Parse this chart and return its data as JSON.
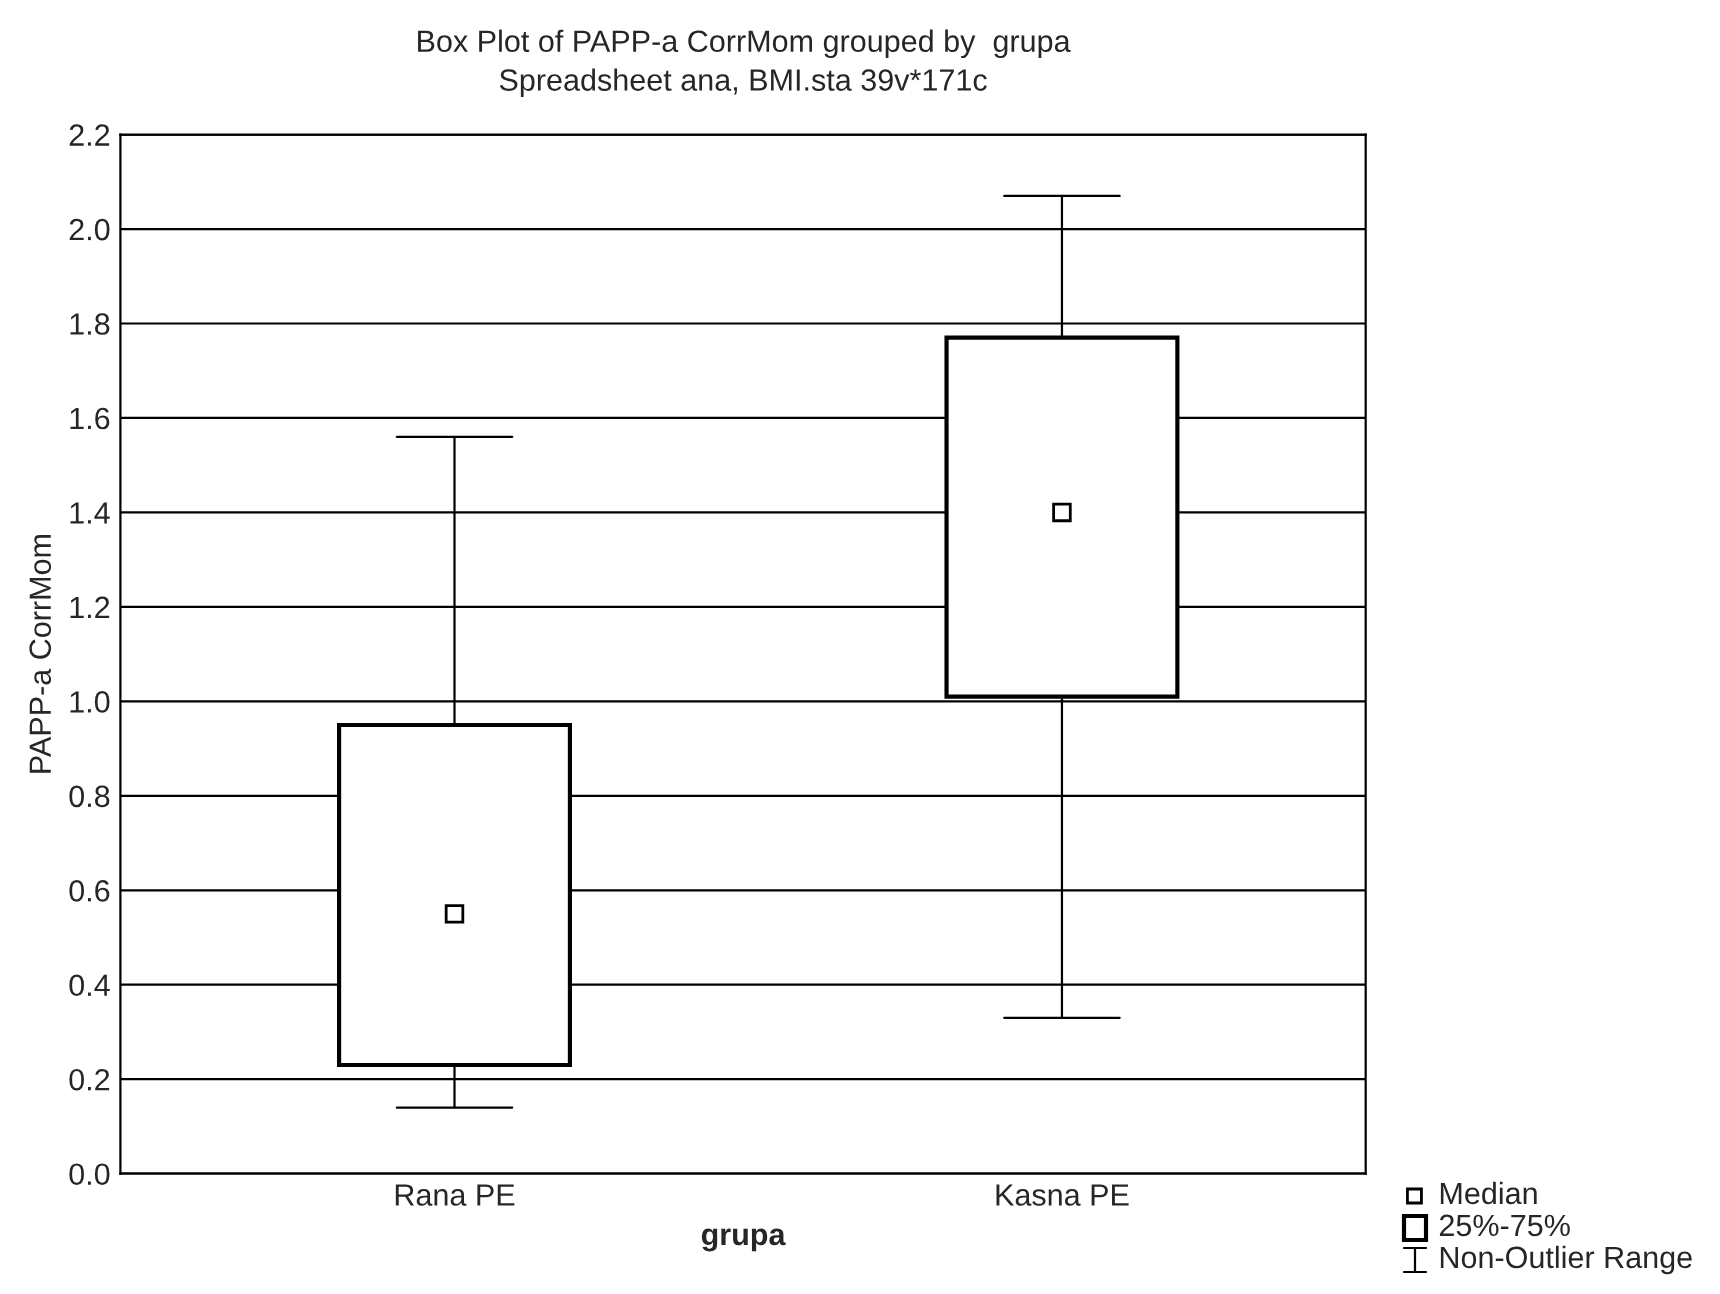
{
  "chart_data": {
    "type": "box",
    "title": "Box Plot of PAPP-a CorrMom grouped by  grupa",
    "subtitle": "Spreadsheet ana, BMI.sta 39v*171c",
    "xlabel": "grupa",
    "ylabel": "PAPP-a CorrMom",
    "categories": [
      "Rana PE",
      "Kasna PE"
    ],
    "boxes": [
      {
        "low": 0.14,
        "q1": 0.23,
        "median": 0.55,
        "q3": 0.95,
        "high": 1.56
      },
      {
        "low": 0.33,
        "q1": 1.01,
        "median": 1.4,
        "q3": 1.77,
        "high": 2.07
      }
    ],
    "ylim": [
      0.0,
      2.2
    ],
    "yticks": [
      {
        "value": 0,
        "label": "0.0"
      },
      0.2,
      0.4,
      0.6,
      0.8,
      {
        "value": 1,
        "label": "1.0"
      },
      1.2,
      1.4,
      1.6,
      1.8,
      {
        "value": 2,
        "label": "2.0"
      },
      2.2
    ],
    "grid": "y",
    "marker": "square",
    "annotations": [
      "Median",
      "25%-75%",
      "Non-Outlier Range"
    ]
  }
}
